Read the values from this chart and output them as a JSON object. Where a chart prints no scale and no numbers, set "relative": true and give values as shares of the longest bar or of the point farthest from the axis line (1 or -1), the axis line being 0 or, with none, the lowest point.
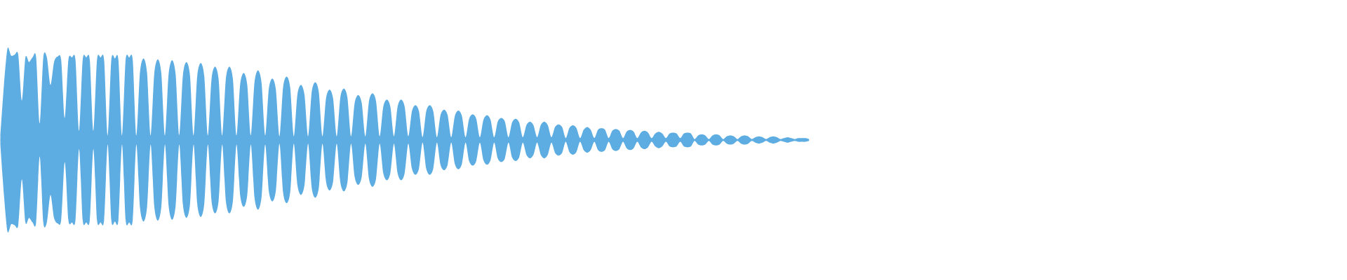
{
  "chart_data": {
    "type": "area",
    "relative": true,
    "categories": [
      null,
      null,
      null,
      null,
      null,
      null,
      null,
      null,
      null,
      null,
      null,
      null,
      null,
      null,
      null,
      null,
      null,
      null,
      null,
      null,
      null,
      null,
      null,
      null,
      null,
      null,
      null,
      null,
      null,
      null,
      null,
      null,
      null,
      null,
      null,
      null,
      null,
      null,
      null,
      null,
      null,
      null,
      null,
      null,
      null,
      null,
      null,
      null,
      null,
      null,
      null,
      null,
      null,
      null,
      null,
      null,
      null,
      null,
      null,
      null,
      null,
      null,
      null,
      null,
      null,
      null,
      null,
      null,
      null,
      null,
      null,
      null,
      null,
      null,
      null,
      null,
      null,
      null,
      null,
      null,
      null,
      null,
      null,
      null,
      null,
      null,
      null,
      null,
      null,
      null,
      null,
      null,
      null,
      null,
      null,
      null,
      null,
      null,
      null,
      null,
      null,
      null,
      null,
      null,
      null,
      null,
      null,
      null,
      null,
      null,
      null,
      null,
      null,
      null,
      null,
      null,
      null,
      null,
      null,
      null,
      null,
      null,
      null,
      null,
      null,
      null,
      null,
      null,
      null,
      null,
      null,
      null,
      null,
      null,
      null,
      null,
      null,
      null,
      null,
      null,
      null,
      null,
      null,
      null,
      null,
      null,
      null,
      null,
      null,
      null,
      null,
      null,
      null,
      null,
      null,
      null,
      null,
      null,
      null,
      null,
      null,
      null,
      null,
      null,
      null,
      null,
      null,
      null,
      null,
      null,
      null,
      null,
      null,
      null,
      null,
      null,
      null,
      null,
      null,
      null,
      null,
      null,
      null,
      null,
      null,
      null,
      null,
      null,
      null,
      null,
      null,
      null,
      null,
      null,
      null,
      null,
      null,
      null,
      null,
      null,
      null,
      null,
      null,
      null,
      null,
      null,
      null,
      null,
      null,
      null,
      null,
      null,
      null,
      null,
      null,
      null,
      null,
      null,
      null,
      null,
      null,
      null,
      null,
      null,
      null,
      null,
      null
    ],
    "series": [
      {
        "color": "#5dade2",
        "values": [
          0.05,
          0.6,
          1.0,
          0.92,
          0.93,
          0.93,
          0.43,
          0.9,
          0.85,
          0.9,
          0.9,
          0.18,
          0.9,
          0.9,
          0.6,
          0.85,
          0.91,
          0.87,
          0.24,
          0.87,
          0.9,
          0.87,
          0.1,
          0.87,
          0.9,
          0.87,
          0.1,
          0.87,
          0.9,
          0.87,
          0.05,
          0.87,
          0.89,
          0.87,
          0.05,
          0.87,
          0.9,
          0.87,
          0.05,
          0.73,
          0.89,
          0.73,
          0.05,
          0.72,
          0.88,
          0.72,
          0.05,
          0.71,
          0.87,
          0.71,
          0.05,
          0.7,
          0.85,
          0.7,
          0.05,
          0.69,
          0.84,
          0.69,
          0.05,
          0.66,
          0.8,
          0.66,
          0.05,
          0.66,
          0.8,
          0.66,
          0.05,
          0.6,
          0.73,
          0.6,
          0.05,
          0.62,
          0.76,
          0.62,
          0.05,
          0.55,
          0.67,
          0.55,
          0.04,
          0.57,
          0.69,
          0.57,
          0.04,
          0.49,
          0.6,
          0.49,
          0.04,
          0.52,
          0.63,
          0.52,
          0.04,
          0.45,
          0.55,
          0.45,
          0.04,
          0.46,
          0.56,
          0.46,
          0.04,
          0.4,
          0.49,
          0.4,
          0.04,
          0.42,
          0.51,
          0.42,
          0.04,
          0.36,
          0.44,
          0.36,
          0.04,
          0.36,
          0.44,
          0.36,
          0.04,
          0.31,
          0.38,
          0.31,
          0.03,
          0.31,
          0.38,
          0.31,
          0.03,
          0.27,
          0.33,
          0.27,
          0.03,
          0.26,
          0.32,
          0.26,
          0.03,
          0.23,
          0.28,
          0.23,
          0.03,
          0.22,
          0.27,
          0.22,
          0.03,
          0.2,
          0.24,
          0.2,
          0.03,
          0.19,
          0.23,
          0.19,
          0.03,
          0.16,
          0.2,
          0.16,
          0.03,
          0.16,
          0.2,
          0.16,
          0.03,
          0.14,
          0.17,
          0.14,
          0.02,
          0.13,
          0.16,
          0.13,
          0.02,
          0.11,
          0.14,
          0.11,
          0.02,
          0.11,
          0.13,
          0.11,
          0.02,
          0.1,
          0.12,
          0.1,
          0.02,
          0.09,
          0.11,
          0.09,
          0.02,
          0.08,
          0.1,
          0.08,
          0.02,
          0.07,
          0.09,
          0.07,
          0.02,
          0.07,
          0.08,
          0.07,
          0.02,
          0.07,
          0.08,
          0.07,
          0.01,
          0.05,
          0.06,
          0.05,
          0.01,
          0.05,
          0.06,
          0.05,
          0.01,
          0.04,
          0.05,
          0.04,
          0.01,
          0.04,
          0.05,
          0.04,
          0.01,
          0.03,
          0.04,
          0.03,
          0.01,
          0.03,
          0.04,
          0.03,
          0.01,
          0.02,
          0.03,
          0.02,
          0.01,
          0.02,
          0.02,
          0.02,
          0.01
        ]
      },
      {
        "color": "#5dade2",
        "values": [
          -0.05,
          -0.6,
          -1.0,
          -0.92,
          -0.93,
          -0.93,
          -0.43,
          -0.9,
          -0.85,
          -0.9,
          -0.9,
          -0.18,
          -0.9,
          -0.9,
          -0.6,
          -0.85,
          -0.91,
          -0.87,
          -0.24,
          -0.87,
          -0.9,
          -0.87,
          -0.1,
          -0.87,
          -0.9,
          -0.87,
          -0.1,
          -0.87,
          -0.9,
          -0.87,
          -0.05,
          -0.87,
          -0.89,
          -0.87,
          -0.05,
          -0.87,
          -0.9,
          -0.87,
          -0.05,
          -0.73,
          -0.89,
          -0.73,
          -0.05,
          -0.72,
          -0.88,
          -0.72,
          -0.05,
          -0.71,
          -0.87,
          -0.71,
          -0.05,
          -0.7,
          -0.85,
          -0.7,
          -0.05,
          -0.69,
          -0.84,
          -0.69,
          -0.05,
          -0.66,
          -0.8,
          -0.66,
          -0.05,
          -0.66,
          -0.8,
          -0.66,
          -0.05,
          -0.6,
          -0.73,
          -0.6,
          -0.05,
          -0.62,
          -0.76,
          -0.62,
          -0.05,
          -0.55,
          -0.67,
          -0.55,
          -0.04,
          -0.57,
          -0.69,
          -0.57,
          -0.04,
          -0.49,
          -0.6,
          -0.49,
          -0.04,
          -0.52,
          -0.63,
          -0.52,
          -0.04,
          -0.45,
          -0.55,
          -0.45,
          -0.04,
          -0.46,
          -0.56,
          -0.46,
          -0.04,
          -0.4,
          -0.49,
          -0.4,
          -0.04,
          -0.42,
          -0.51,
          -0.42,
          -0.04,
          -0.36,
          -0.44,
          -0.36,
          -0.04,
          -0.36,
          -0.44,
          -0.36,
          -0.04,
          -0.31,
          -0.38,
          -0.31,
          -0.03,
          -0.31,
          -0.38,
          -0.31,
          -0.03,
          -0.27,
          -0.33,
          -0.27,
          -0.03,
          -0.26,
          -0.32,
          -0.26,
          -0.03,
          -0.23,
          -0.28,
          -0.23,
          -0.03,
          -0.22,
          -0.27,
          -0.22,
          -0.03,
          -0.2,
          -0.24,
          -0.2,
          -0.03,
          -0.19,
          -0.23,
          -0.19,
          -0.03,
          -0.16,
          -0.2,
          -0.16,
          -0.03,
          -0.16,
          -0.2,
          -0.16,
          -0.03,
          -0.14,
          -0.17,
          -0.14,
          -0.02,
          -0.13,
          -0.16,
          -0.13,
          -0.02,
          -0.11,
          -0.14,
          -0.11,
          -0.02,
          -0.11,
          -0.13,
          -0.11,
          -0.02,
          -0.1,
          -0.12,
          -0.1,
          -0.02,
          -0.09,
          -0.11,
          -0.09,
          -0.02,
          -0.08,
          -0.1,
          -0.08,
          -0.02,
          -0.07,
          -0.09,
          -0.07,
          -0.02,
          -0.07,
          -0.08,
          -0.07,
          -0.02,
          -0.07,
          -0.08,
          -0.07,
          -0.01,
          -0.05,
          -0.06,
          -0.05,
          -0.01,
          -0.05,
          -0.06,
          -0.05,
          -0.01,
          -0.04,
          -0.05,
          -0.04,
          -0.01,
          -0.04,
          -0.05,
          -0.04,
          -0.01,
          -0.03,
          -0.04,
          -0.03,
          -0.01,
          -0.03,
          -0.04,
          -0.03,
          -0.01,
          -0.02,
          -0.03,
          -0.02,
          -0.01,
          -0.02,
          -0.02,
          -0.02,
          -0.01
        ]
      }
    ],
    "ref_lines": [
      {
        "axis": "y",
        "value": 0,
        "color": "#5dade2"
      }
    ]
  }
}
